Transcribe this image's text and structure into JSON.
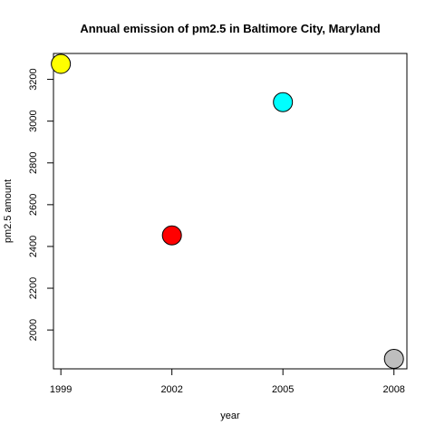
{
  "chart_data": {
    "type": "scatter",
    "title": "Annual emission of pm2.5 in Baltimore City, Maryland",
    "xlabel": "year",
    "ylabel": "pm2.5 amount",
    "x": [
      1999,
      2002,
      2005,
      2008
    ],
    "y": [
      3274,
      2453,
      3091,
      1862
    ],
    "point_colors": [
      "#ffff00",
      "#ff0000",
      "#00ffff",
      "#bebebe"
    ],
    "xticks": [
      1999,
      2002,
      2005,
      2008
    ],
    "yticks": [
      2000,
      2200,
      2400,
      2600,
      2800,
      3000,
      3200
    ],
    "xlim": [
      1998.8,
      2008.35
    ],
    "ylim": [
      1814,
      3324
    ],
    "grid": false,
    "legend": "none"
  }
}
